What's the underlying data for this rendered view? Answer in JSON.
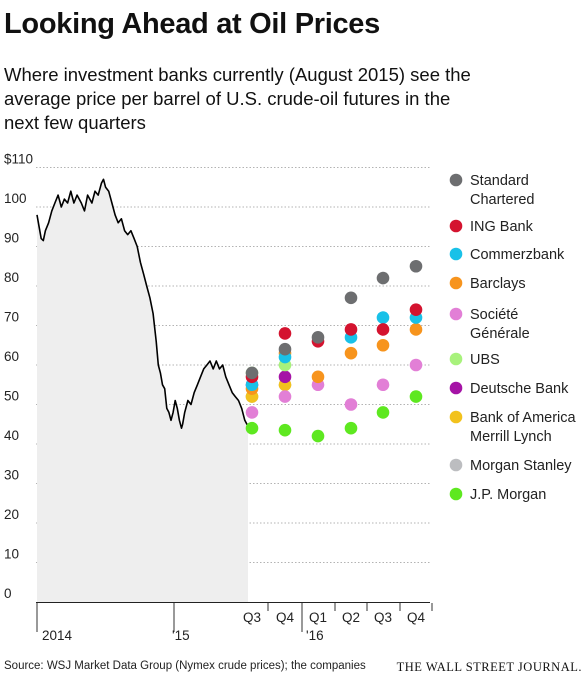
{
  "title": "Looking Ahead at Oil Prices",
  "subtitle": "Where investment banks currently (August 2015) see the average price per barrel of U.S. crude-oil futures in the next few quarters",
  "source": "Source: WSJ Market Data Group (Nymex crude prices); the companies",
  "brand": "THE WALL STREET JOURNAL.",
  "chart_data": {
    "type": "line",
    "ylim": [
      0,
      110
    ],
    "y_ticks": [
      {
        "value": 110,
        "label": "$110"
      },
      {
        "value": 100,
        "label": "100"
      },
      {
        "value": 90,
        "label": "90"
      },
      {
        "value": 80,
        "label": "80"
      },
      {
        "value": 70,
        "label": "70"
      },
      {
        "value": 60,
        "label": "60"
      },
      {
        "value": 50,
        "label": "50"
      },
      {
        "value": 40,
        "label": "40"
      },
      {
        "value": 30,
        "label": "30"
      },
      {
        "value": 20,
        "label": "20"
      },
      {
        "value": 10,
        "label": "10"
      },
      {
        "value": 0,
        "label": "0"
      }
    ],
    "x_ticks": [
      "2014",
      "'15",
      "Q3",
      "Q4",
      "Q1",
      "Q2",
      "Q3",
      "Q4"
    ],
    "x_subtick": "'16",
    "grid": "horizontal",
    "legend": "right",
    "history": {
      "name": "U.S. crude-oil futures",
      "color": "#000000",
      "fill": "#eeeeee",
      "points": [
        [
          0.0,
          98
        ],
        [
          0.01,
          95
        ],
        [
          0.02,
          92
        ],
        [
          0.03,
          91.5
        ],
        [
          0.04,
          94
        ],
        [
          0.055,
          96
        ],
        [
          0.07,
          99
        ],
        [
          0.085,
          101
        ],
        [
          0.1,
          103
        ],
        [
          0.115,
          100
        ],
        [
          0.13,
          102
        ],
        [
          0.145,
          101
        ],
        [
          0.16,
          104
        ],
        [
          0.175,
          101
        ],
        [
          0.19,
          103
        ],
        [
          0.21,
          101
        ],
        [
          0.225,
          99
        ],
        [
          0.24,
          103
        ],
        [
          0.26,
          101
        ],
        [
          0.275,
          104
        ],
        [
          0.29,
          103
        ],
        [
          0.305,
          106
        ],
        [
          0.315,
          107
        ],
        [
          0.325,
          105
        ],
        [
          0.34,
          104
        ],
        [
          0.355,
          101
        ],
        [
          0.37,
          98
        ],
        [
          0.385,
          96
        ],
        [
          0.4,
          97
        ],
        [
          0.415,
          94
        ],
        [
          0.43,
          93
        ],
        [
          0.445,
          94
        ],
        [
          0.46,
          92
        ],
        [
          0.475,
          90
        ],
        [
          0.49,
          86
        ],
        [
          0.505,
          83
        ],
        [
          0.52,
          80
        ],
        [
          0.535,
          77
        ],
        [
          0.55,
          73
        ],
        [
          0.565,
          66
        ],
        [
          0.575,
          60
        ],
        [
          0.585,
          58
        ],
        [
          0.595,
          55
        ],
        [
          0.605,
          54
        ],
        [
          0.615,
          49
        ],
        [
          0.625,
          48
        ],
        [
          0.635,
          46
        ],
        [
          0.645,
          48
        ],
        [
          0.655,
          51
        ],
        [
          0.665,
          49
        ],
        [
          0.675,
          46
        ],
        [
          0.685,
          44
        ],
        [
          0.69,
          45
        ],
        [
          0.7,
          48
        ],
        [
          0.715,
          51
        ],
        [
          0.73,
          50
        ],
        [
          0.745,
          53
        ],
        [
          0.76,
          55
        ],
        [
          0.775,
          57
        ],
        [
          0.79,
          59
        ],
        [
          0.805,
          60
        ],
        [
          0.82,
          61
        ],
        [
          0.835,
          59
        ],
        [
          0.85,
          61
        ],
        [
          0.865,
          59
        ],
        [
          0.88,
          60
        ],
        [
          0.895,
          57
        ],
        [
          0.91,
          55
        ],
        [
          0.925,
          53
        ],
        [
          0.94,
          52
        ],
        [
          0.955,
          51
        ],
        [
          0.97,
          49
        ],
        [
          0.985,
          46
        ],
        [
          1.0,
          44.5
        ]
      ]
    },
    "series": [
      {
        "name": "Standard Chartered",
        "color": "#6d6e70",
        "values": [
          58,
          64,
          67,
          77,
          82,
          85
        ]
      },
      {
        "name": "ING Bank",
        "color": "#d4132f",
        "values": [
          57,
          68,
          66,
          69,
          69,
          74
        ]
      },
      {
        "name": "Commerzbank",
        "color": "#19c1e8",
        "values": [
          55,
          62,
          null,
          67,
          72,
          72
        ]
      },
      {
        "name": "Barclays",
        "color": "#f7941d",
        "values": [
          54,
          63,
          57,
          63,
          65,
          69
        ]
      },
      {
        "name": "Société Générale",
        "color": "#e27fd6",
        "values": [
          48,
          52,
          55,
          50,
          55,
          60
        ]
      },
      {
        "name": "UBS",
        "color": "#a8f27c",
        "values": [
          58,
          60,
          null,
          null,
          null,
          null
        ]
      },
      {
        "name": "Deutsche Bank",
        "color": "#a513a6",
        "values": [
          55,
          57,
          null,
          null,
          null,
          null
        ]
      },
      {
        "name": "Bank of America Merrill Lynch",
        "color": "#f2c21d",
        "values": [
          52,
          55,
          null,
          null,
          null,
          null
        ]
      },
      {
        "name": "Morgan Stanley",
        "color": "#bcbdc0",
        "values": [
          52,
          55,
          null,
          null,
          null,
          null
        ]
      },
      {
        "name": "J.P. Morgan",
        "color": "#5ee820",
        "values": [
          44,
          43.5,
          42,
          44,
          48,
          52
        ]
      }
    ]
  }
}
